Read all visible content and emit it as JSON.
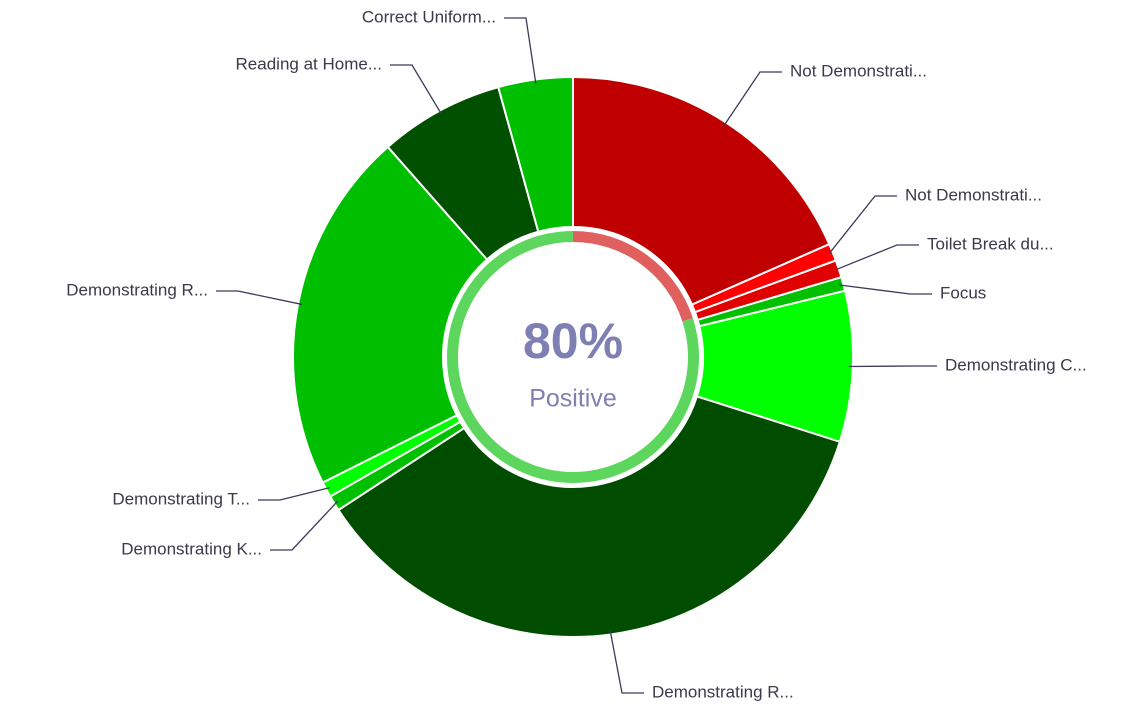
{
  "chart_data": {
    "type": "pie",
    "categories": [
      "Not Demonstrati...",
      "Not Demonstrati...",
      "Toilet Break du...",
      "Focus",
      "Demonstrating C...",
      "Demonstrating R...",
      "Demonstrating K...",
      "Demonstrating T...",
      "Demonstrating R...",
      "Reading at Home...",
      "Correct Uniform..."
    ],
    "values": [
      18.4,
      1,
      1,
      0.8,
      8.7,
      35.9,
      0.9,
      0.9,
      20.9,
      7.2,
      4.3
    ],
    "colors": [
      "#c00000",
      "#ff0000",
      "#e00000",
      "#00c000",
      "#00ff00",
      "#004d00",
      "#00c000",
      "#00ff00",
      "#00bf00",
      "#005000",
      "#00bf00"
    ],
    "center_value": 80,
    "center_value_label": "80%",
    "center_label": "Positive",
    "ring_colors": [
      "#5cd65c",
      "#e06060"
    ]
  }
}
